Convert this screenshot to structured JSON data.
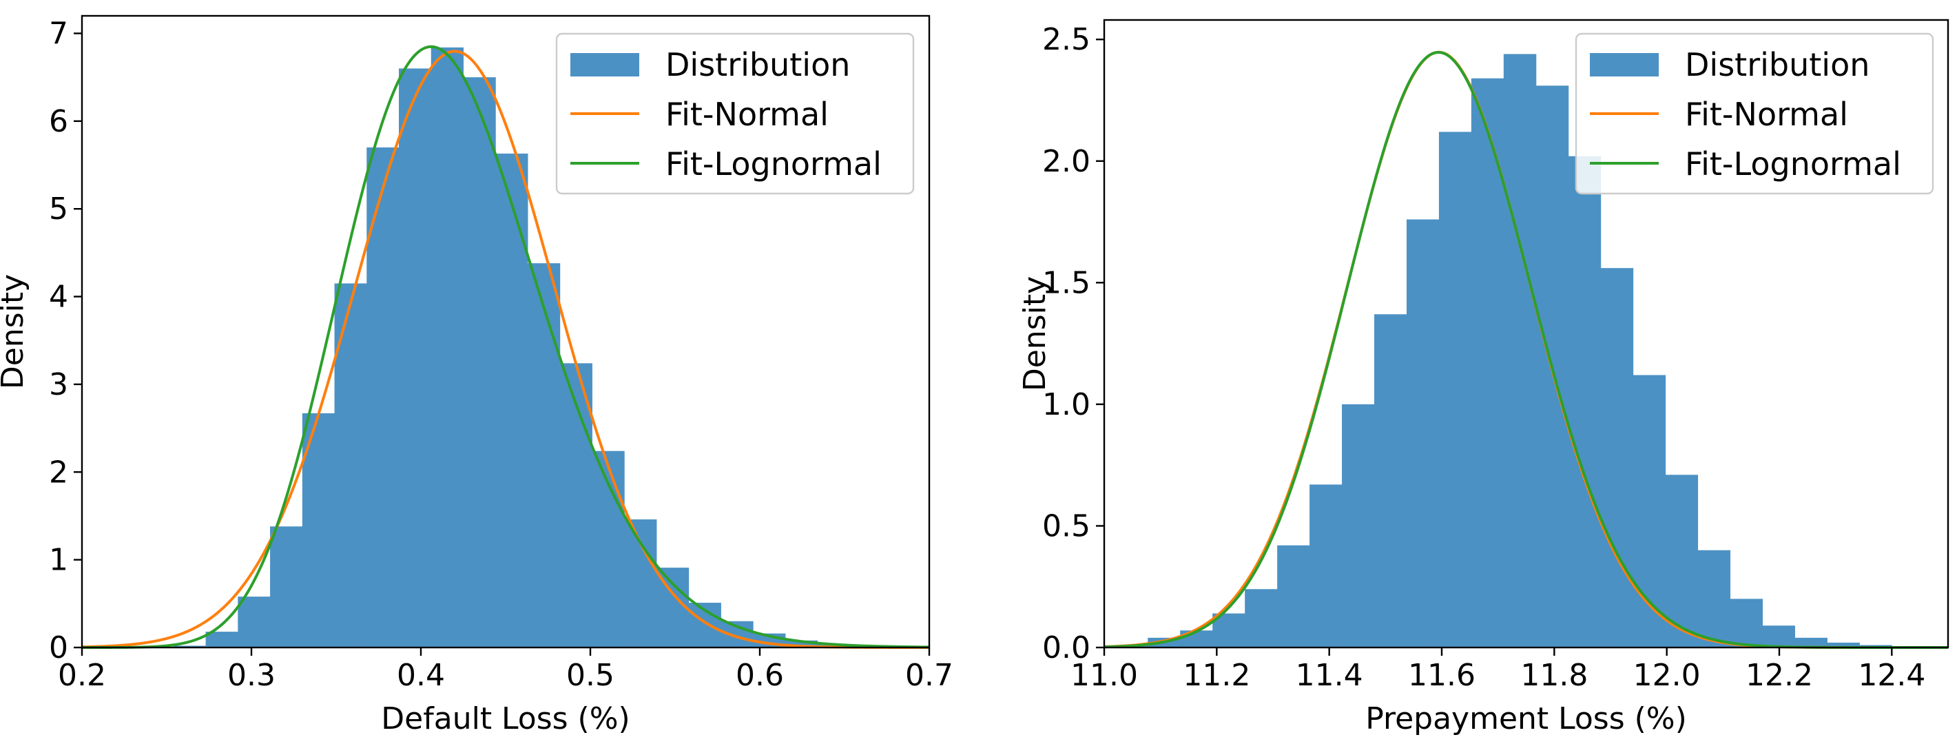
{
  "chart_data": [
    {
      "type": "bar",
      "xlabel": "Default Loss (%)",
      "ylabel": "Density",
      "xlim": [
        0.2,
        0.7
      ],
      "ylim": [
        0,
        7.2
      ],
      "xticks": [
        "0.2",
        "0.3",
        "0.4",
        "0.5",
        "0.6",
        "0.7"
      ],
      "yticks": [
        "0",
        "1",
        "2",
        "3",
        "4",
        "5",
        "6",
        "7"
      ],
      "legend": {
        "position": "top-right",
        "entries": [
          "Distribution",
          "Fit-Normal",
          "Fit-Lognormal"
        ]
      },
      "colors": {
        "bars": "#4c91c4",
        "normal": "#ff7f0e",
        "lognormal": "#2ca02c"
      },
      "histogram": {
        "bin_start": 0.235,
        "bin_width": 0.019,
        "values": [
          0.0,
          0.02,
          0.18,
          0.58,
          1.38,
          2.67,
          4.15,
          5.7,
          6.6,
          6.84,
          6.5,
          5.63,
          4.38,
          3.24,
          2.24,
          1.46,
          0.91,
          0.51,
          0.3,
          0.16,
          0.08,
          0.04,
          0.02
        ]
      },
      "fit_normal": {
        "mean": 0.42,
        "sd": 0.0587
      },
      "fit_lognormal": {
        "mu": -0.881,
        "sigma": 0.142
      }
    },
    {
      "type": "bar",
      "xlabel": "Prepayment Loss (%)",
      "ylabel": "Density",
      "xlim": [
        11.0,
        12.5
      ],
      "ylim": [
        0,
        2.58
      ],
      "xticks": [
        "11.0",
        "11.2",
        "11.4",
        "11.6",
        "11.8",
        "12.0",
        "12.2",
        "12.4"
      ],
      "yticks": [
        "0.0",
        "0.5",
        "1.0",
        "1.5",
        "2.0",
        "2.5"
      ],
      "legend": {
        "position": "top-right",
        "entries": [
          "Distribution",
          "Fit-Normal",
          "Fit-Lognormal"
        ]
      },
      "colors": {
        "bars": "#4c91c4",
        "normal": "#ff7f0e",
        "lognormal": "#2ca02c"
      },
      "histogram": {
        "bin_start": 11.02,
        "bin_width": 0.0575,
        "values": [
          0.01,
          0.04,
          0.07,
          0.14,
          0.24,
          0.42,
          0.67,
          1.0,
          1.37,
          1.76,
          2.12,
          2.34,
          2.44,
          2.31,
          2.02,
          1.56,
          1.12,
          0.71,
          0.4,
          0.2,
          0.09,
          0.04,
          0.02,
          0.01
        ]
      },
      "fit_normal": {
        "mean": 11.595,
        "sd": 0.163
      },
      "fit_lognormal": {
        "mu": 2.4507,
        "sigma": 0.01406
      }
    }
  ]
}
